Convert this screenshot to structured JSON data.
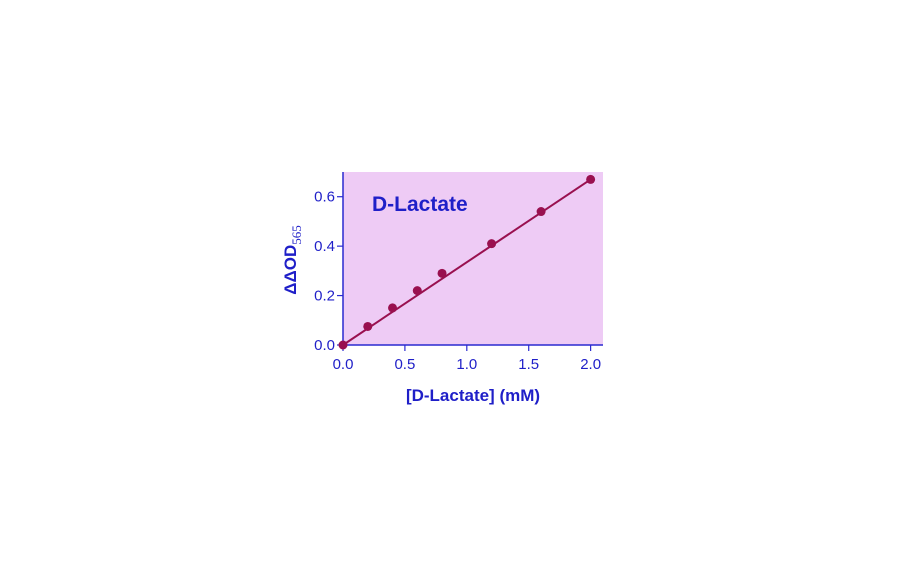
{
  "chart_data": {
    "type": "scatter",
    "title": "D-Lactate",
    "xlabel": "[D-Lactate] (mM)",
    "ylabel": "ΔΔOD",
    "ylabel_subscript": "565",
    "xlim": [
      0,
      2.1
    ],
    "ylim": [
      0,
      0.7
    ],
    "xticks": [
      "0.0",
      "0.5",
      "1.0",
      "1.5",
      "2.0"
    ],
    "yticks": [
      "0.0",
      "0.2",
      "0.4",
      "0.6"
    ],
    "grid": false,
    "x": [
      0,
      0.2,
      0.4,
      0.6,
      0.8,
      1.2,
      1.6,
      2.0
    ],
    "y": [
      0,
      0.075,
      0.15,
      0.22,
      0.29,
      0.41,
      0.54,
      0.67
    ],
    "fit_line": {
      "x": [
        0,
        2.0
      ],
      "y": [
        0,
        0.67
      ]
    },
    "colors": {
      "plot_background": "#eecbf5",
      "text": "#1f1fc8",
      "series": "#99104f",
      "axis": "#2a2ad0"
    }
  }
}
